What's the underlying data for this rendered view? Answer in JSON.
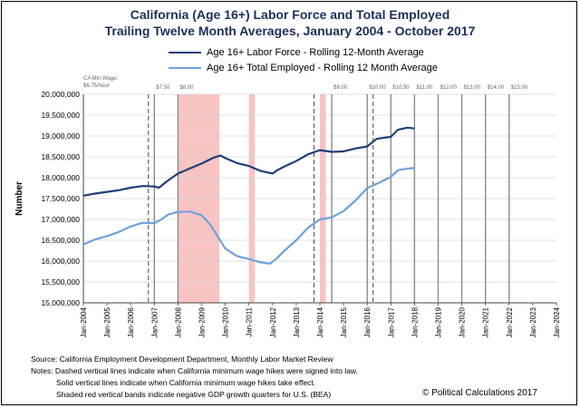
{
  "chart_data": {
    "type": "line",
    "title_line1": "California (Age 16+) Labor Force and Total Employed",
    "title_line2": "Trailing Twelve Month Averages, January 2004 - October 2017",
    "ylabel": "Number",
    "ylim": [
      15000000,
      20000000
    ],
    "y_ticks": [
      15000000,
      15500000,
      16000000,
      16500000,
      17000000,
      17500000,
      18000000,
      18500000,
      19000000,
      19500000,
      20000000
    ],
    "y_tick_labels": [
      "15,000,000",
      "15,500,000",
      "16,000,000",
      "16,500,000",
      "17,000,000",
      "17,500,000",
      "18,000,000",
      "18,500,000",
      "19,000,000",
      "19,500,000",
      "20,000,000"
    ],
    "xlim": [
      2004.0,
      2024.0
    ],
    "x_tick_labels": [
      "Jan-2004",
      "Jan-2005",
      "Jan-2006",
      "Jan-2007",
      "Jan-2008",
      "Jan-2009",
      "Jan-2010",
      "Jan-2011",
      "Jan-2012",
      "Jan-2013",
      "Jan-2014",
      "Jan-2015",
      "Jan-2016",
      "Jan-2017",
      "Jan-2018",
      "Jan-2019",
      "Jan-2020",
      "Jan-2021",
      "Jan-2022",
      "Jan-2023",
      "Jan-2024"
    ],
    "legend_position": "top",
    "series": [
      {
        "name": "Age 16+ Labor Force - Rolling 12-Month Average",
        "color": "#1f3f7a",
        "points": [
          [
            2004.0,
            17570000
          ],
          [
            2004.5,
            17620000
          ],
          [
            2005.0,
            17660000
          ],
          [
            2005.5,
            17700000
          ],
          [
            2006.0,
            17760000
          ],
          [
            2006.5,
            17800000
          ],
          [
            2007.0,
            17790000
          ],
          [
            2007.2,
            17760000
          ],
          [
            2007.5,
            17900000
          ],
          [
            2008.0,
            18100000
          ],
          [
            2008.5,
            18220000
          ],
          [
            2009.0,
            18340000
          ],
          [
            2009.5,
            18480000
          ],
          [
            2009.8,
            18530000
          ],
          [
            2010.0,
            18470000
          ],
          [
            2010.5,
            18350000
          ],
          [
            2011.0,
            18280000
          ],
          [
            2011.5,
            18160000
          ],
          [
            2012.0,
            18100000
          ],
          [
            2012.2,
            18180000
          ],
          [
            2012.5,
            18270000
          ],
          [
            2013.0,
            18400000
          ],
          [
            2013.5,
            18560000
          ],
          [
            2014.0,
            18660000
          ],
          [
            2014.5,
            18620000
          ],
          [
            2015.0,
            18630000
          ],
          [
            2015.5,
            18700000
          ],
          [
            2016.0,
            18750000
          ],
          [
            2016.4,
            18930000
          ],
          [
            2017.0,
            18980000
          ],
          [
            2017.3,
            19150000
          ],
          [
            2017.7,
            19200000
          ],
          [
            2018.0,
            19180000
          ]
        ]
      },
      {
        "name": "Age 16+ Total Employed - Rolling 12 Month Average",
        "color": "#6fa1dc",
        "points": [
          [
            2004.0,
            16400000
          ],
          [
            2004.5,
            16520000
          ],
          [
            2005.0,
            16600000
          ],
          [
            2005.5,
            16700000
          ],
          [
            2006.0,
            16830000
          ],
          [
            2006.5,
            16920000
          ],
          [
            2007.0,
            16910000
          ],
          [
            2007.3,
            17000000
          ],
          [
            2007.6,
            17120000
          ],
          [
            2008.0,
            17180000
          ],
          [
            2008.5,
            17190000
          ],
          [
            2009.0,
            17100000
          ],
          [
            2009.4,
            16850000
          ],
          [
            2010.0,
            16300000
          ],
          [
            2010.5,
            16120000
          ],
          [
            2011.0,
            16050000
          ],
          [
            2011.5,
            15970000
          ],
          [
            2011.9,
            15940000
          ],
          [
            2012.2,
            16080000
          ],
          [
            2012.5,
            16250000
          ],
          [
            2013.0,
            16500000
          ],
          [
            2013.5,
            16800000
          ],
          [
            2014.0,
            17000000
          ],
          [
            2014.5,
            17050000
          ],
          [
            2015.0,
            17200000
          ],
          [
            2015.5,
            17450000
          ],
          [
            2016.0,
            17750000
          ],
          [
            2016.5,
            17880000
          ],
          [
            2017.0,
            18020000
          ],
          [
            2017.3,
            18180000
          ],
          [
            2017.7,
            18220000
          ],
          [
            2018.0,
            18230000
          ]
        ]
      }
    ],
    "recession_bands": [
      [
        2008.0,
        2009.75
      ],
      [
        2011.0,
        2011.25
      ],
      [
        2014.0,
        2014.25
      ]
    ],
    "signed_hikes_dashed": [
      2006.75,
      2013.75,
      2016.25
    ],
    "effective_hikes_solid": [
      2007.0,
      2008.0,
      2014.5,
      2016.0,
      2017.0,
      2018.0,
      2019.0,
      2020.0,
      2021.0,
      2022.0
    ],
    "wage_labels": [
      {
        "text": "$6.75/hour",
        "x": 2004.0
      },
      {
        "text": "$7.50",
        "x": 2007.0
      },
      {
        "text": "$8.00",
        "x": 2008.0
      },
      {
        "text": "$9.00",
        "x": 2014.5
      },
      {
        "text": "$10.00",
        "x": 2016.0
      },
      {
        "text": "$10.50",
        "x": 2017.0
      },
      {
        "text": "$11.00",
        "x": 2018.0
      },
      {
        "text": "$12.00",
        "x": 2019.0
      },
      {
        "text": "$13.00",
        "x": 2020.0
      },
      {
        "text": "$14.00",
        "x": 2021.0
      },
      {
        "text": "$15.00",
        "x": 2022.0
      }
    ],
    "wage_caption": "CA Min Wage:"
  },
  "footer": {
    "source": "Source:  California Employment  Development Department,  Monthly  Labor Market Review",
    "note1": "Notes: Dashed vertical lines indicate when California minimum  wage hikes were signed into law.",
    "note2": "Solid vertical lines indicate when California minimum  wage hikes take effect.",
    "note3": "Shaded red vertical bands indicate negative GDP growth quarters for U.S. (BEA)",
    "credit": "© Political Calculations 2017"
  }
}
